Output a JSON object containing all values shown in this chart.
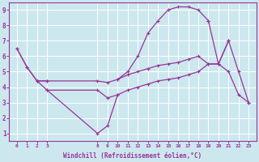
{
  "xlabel": "Windchill (Refroidissement éolien,°C)",
  "bg_color": "#cce8ee",
  "grid_color": "#ffffff",
  "line_color": "#993399",
  "segments": [
    {
      "x": [
        0,
        1,
        2,
        3
      ],
      "y": [
        6.5,
        5.3,
        4.4,
        4.4
      ]
    },
    {
      "x": [
        10,
        11,
        12,
        13,
        14,
        15,
        16,
        17,
        18,
        19
      ],
      "y": [
        4.5,
        5.0,
        6.0,
        7.5,
        8.3,
        9.0,
        9.2,
        9.2,
        9.0,
        8.3
      ]
    },
    {
      "x": [
        0,
        1,
        2,
        3,
        8,
        9,
        10,
        11,
        12,
        13,
        14,
        15,
        16,
        17,
        18,
        19,
        20,
        21
      ],
      "y": [
        6.5,
        5.3,
        4.4,
        4.4,
        4.4,
        4.3,
        4.5,
        4.8,
        5.0,
        5.2,
        5.4,
        5.5,
        5.6,
        5.8,
        6.0,
        5.5,
        5.5,
        7.0
      ]
    },
    {
      "x": [
        2,
        3,
        8,
        9,
        10,
        11,
        12,
        13,
        14,
        15,
        16,
        17,
        18,
        19,
        20,
        21
      ],
      "y": [
        4.4,
        3.8,
        3.8,
        3.3,
        3.5,
        3.8,
        4.0,
        4.2,
        4.4,
        4.5,
        4.6,
        4.8,
        5.0,
        5.5,
        5.5,
        7.0
      ]
    },
    {
      "x": [
        3,
        8,
        9,
        10
      ],
      "y": [
        3.8,
        1.0,
        1.5,
        3.5
      ]
    },
    {
      "x": [
        19,
        20,
        21,
        22,
        23
      ],
      "y": [
        8.3,
        5.5,
        5.0,
        3.5,
        3.0
      ]
    },
    {
      "x": [
        21,
        22,
        23
      ],
      "y": [
        7.0,
        5.0,
        3.0
      ]
    }
  ],
  "xticks_pos": [
    0,
    1,
    2,
    3,
    8,
    9,
    10,
    11,
    12,
    13,
    14,
    15,
    16,
    17,
    18,
    19,
    20,
    21,
    22,
    23
  ],
  "xticks_labels": [
    "0",
    "1",
    "2",
    "3",
    "8",
    "9",
    "10",
    "11",
    "12",
    "13",
    "14",
    "15",
    "16",
    "17",
    "18",
    "19",
    "20",
    "21",
    "22",
    "23"
  ],
  "xlim": [
    -0.8,
    23.8
  ],
  "ylim": [
    0.5,
    9.5
  ],
  "yticks": [
    1,
    2,
    3,
    4,
    5,
    6,
    7,
    8,
    9
  ]
}
